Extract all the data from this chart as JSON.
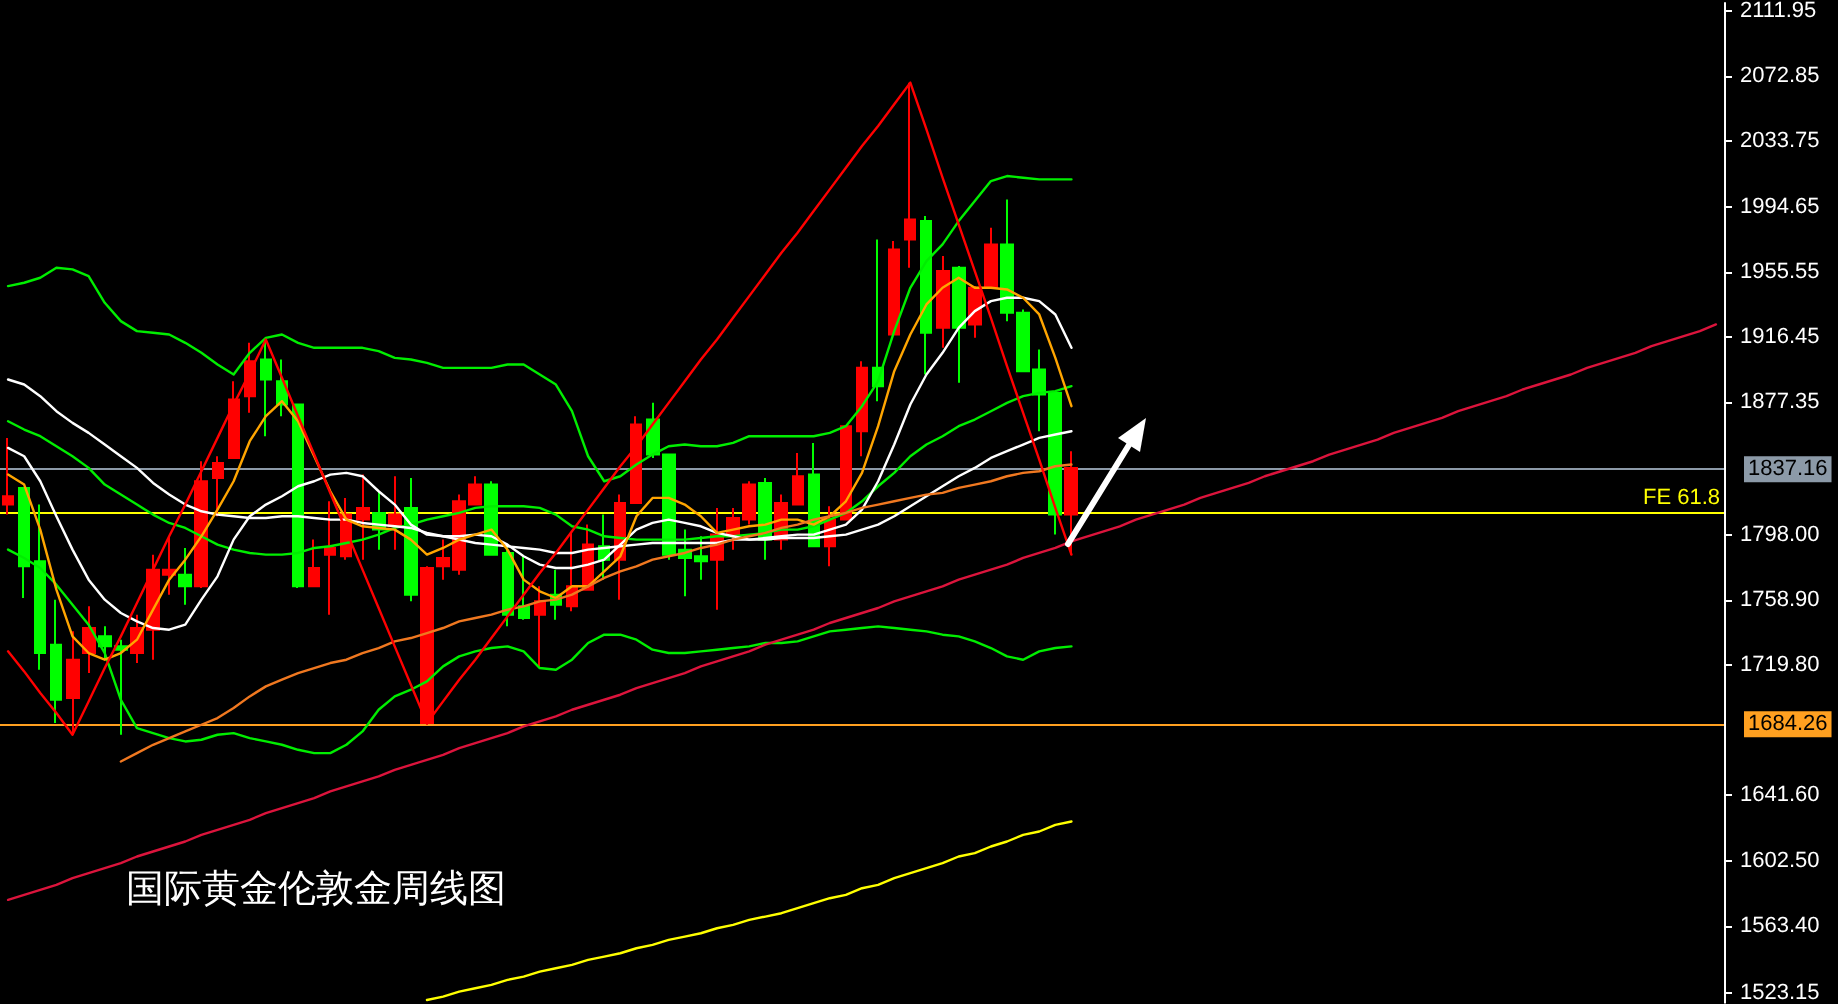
{
  "chart_data": {
    "type": "candlestick",
    "title": "国际黄金伦敦金周线图",
    "categories": [
      null,
      null,
      null,
      null,
      null,
      null,
      null,
      null,
      null,
      null,
      null,
      null,
      null,
      null,
      null,
      null,
      null,
      null,
      null,
      null,
      null,
      null,
      null,
      null,
      null,
      null,
      null,
      null,
      null,
      null,
      null,
      null,
      null,
      null,
      null,
      null,
      null,
      null,
      null,
      null,
      null,
      null,
      null,
      null,
      null,
      null,
      null,
      null,
      null,
      null,
      null,
      null,
      null,
      null,
      null,
      null,
      null,
      null,
      null,
      null,
      null,
      null,
      null,
      null,
      null,
      null,
      null,
      null,
      null,
      null,
      null,
      null,
      null,
      null,
      null,
      null,
      null,
      null,
      null,
      null,
      null,
      null,
      null,
      null,
      null,
      null,
      null,
      null,
      null,
      null,
      null,
      null,
      null,
      null,
      null,
      null,
      null,
      null,
      null,
      null,
      null,
      null,
      null,
      null,
      null,
      null,
      null
    ],
    "ohlc": [
      [
        1816,
        1856,
        1810,
        1821
      ],
      [
        1826,
        1826,
        1760,
        1779
      ],
      [
        1782,
        1816,
        1717,
        1727
      ],
      [
        1732,
        1759,
        1685,
        1699
      ],
      [
        1700,
        1740,
        1678,
        1723
      ],
      [
        1727,
        1755,
        1715,
        1742
      ],
      [
        1737,
        1743,
        1723,
        1731
      ],
      [
        1731,
        1735,
        1678,
        1729
      ],
      [
        1727,
        1750,
        1721,
        1742
      ],
      [
        1741,
        1786,
        1723,
        1777
      ],
      [
        1774,
        1797,
        1762,
        1777
      ],
      [
        1774,
        1790,
        1756,
        1767
      ],
      [
        1767,
        1842,
        1766,
        1830
      ],
      [
        1832,
        1845,
        1809,
        1841
      ],
      [
        1844,
        1890,
        1844,
        1879
      ],
      [
        1881,
        1913,
        1871,
        1902
      ],
      [
        1903,
        1915,
        1857,
        1891
      ],
      [
        1890,
        1903,
        1869,
        1876
      ],
      [
        1876,
        1876,
        1766,
        1767
      ],
      [
        1767,
        1795,
        1767,
        1778
      ],
      [
        1786,
        1818,
        1750,
        1790
      ],
      [
        1785,
        1820,
        1783,
        1810
      ],
      [
        1807,
        1834,
        1783,
        1814
      ],
      [
        1811,
        1824,
        1789,
        1801
      ],
      [
        1803,
        1833,
        1789,
        1810
      ],
      [
        1814,
        1832,
        1758,
        1762
      ],
      [
        1685,
        1779,
        1684,
        1778
      ],
      [
        1779,
        1795,
        1771,
        1784
      ],
      [
        1777,
        1822,
        1774,
        1818
      ],
      [
        1816,
        1833,
        1816,
        1828
      ],
      [
        1828,
        1830,
        1786,
        1786
      ],
      [
        1787,
        1791,
        1743,
        1750
      ],
      [
        1755,
        1785,
        1747,
        1748
      ],
      [
        1750,
        1767,
        1719,
        1758
      ],
      [
        1762,
        1777,
        1747,
        1756
      ],
      [
        1755,
        1799,
        1752,
        1767
      ],
      [
        1765,
        1804,
        1765,
        1792
      ],
      [
        1791,
        1810,
        1771,
        1783
      ],
      [
        1783,
        1822,
        1759,
        1817
      ],
      [
        1817,
        1869,
        1817,
        1864
      ],
      [
        1867,
        1877,
        1844,
        1846
      ],
      [
        1846,
        1846,
        1783,
        1786
      ],
      [
        1789,
        1801,
        1761,
        1784
      ],
      [
        1785,
        1797,
        1771,
        1782
      ],
      [
        1783,
        1814,
        1753,
        1798
      ],
      [
        1797,
        1814,
        1789,
        1808
      ],
      [
        1807,
        1830,
        1804,
        1828
      ],
      [
        1829,
        1832,
        1783,
        1795
      ],
      [
        1795,
        1822,
        1789,
        1817
      ],
      [
        1816,
        1847,
        1816,
        1833
      ],
      [
        1834,
        1853,
        1791,
        1791
      ],
      [
        1791,
        1815,
        1779,
        1807
      ],
      [
        1807,
        1863,
        1807,
        1863
      ],
      [
        1860,
        1902,
        1845,
        1898
      ],
      [
        1898,
        1975,
        1878,
        1887
      ],
      [
        1918,
        1974,
        1918,
        1969
      ],
      [
        1975,
        2069,
        1958,
        1987
      ],
      [
        1986,
        1989,
        1894,
        1919
      ],
      [
        1922,
        1965,
        1910,
        1956
      ],
      [
        1958,
        1959,
        1889,
        1922
      ],
      [
        1924,
        1947,
        1916,
        1946
      ],
      [
        1946,
        1982,
        1946,
        1972
      ],
      [
        1972,
        1999,
        1926,
        1931
      ],
      [
        1931,
        1933,
        1896,
        1896
      ],
      [
        1897,
        1909,
        1860,
        1882
      ],
      [
        1883,
        1883,
        1798,
        1810
      ],
      [
        1810,
        1848,
        1786,
        1838
      ],
      null,
      null,
      null,
      null,
      null,
      null,
      null,
      null,
      null,
      null,
      null,
      null,
      null,
      null,
      null,
      null,
      null,
      null,
      null,
      null,
      null,
      null,
      null,
      null,
      null,
      null,
      null,
      null,
      null,
      null,
      null,
      null,
      null,
      null,
      null,
      null,
      null,
      null,
      null,
      null
    ],
    "series": [
      {
        "type": "line",
        "color": "#00ee00",
        "values": [
          1947,
          1949,
          1952,
          1958,
          1957,
          1953,
          1937,
          1926,
          1920,
          1919,
          1918,
          1913,
          1907,
          1900,
          1894,
          1907,
          1916,
          1918,
          1913,
          1910,
          1910,
          1910,
          1910,
          1908,
          1904,
          1903,
          1901,
          1898,
          1898,
          1898,
          1898,
          1900,
          1900,
          1894,
          1888,
          1872,
          1845,
          1830,
          1833,
          1840,
          1846,
          1851,
          1852,
          1851,
          1851,
          1853,
          1857,
          1857,
          1857,
          1857,
          1857,
          1859,
          1863,
          1875,
          1890,
          1920,
          1946,
          1962,
          1972,
          1986,
          1998,
          2010,
          2013,
          2012,
          2011,
          2011,
          2011,
          null,
          null,
          null,
          null,
          null,
          null,
          null,
          null,
          null,
          null,
          null,
          null,
          null,
          null,
          null,
          null,
          null,
          null,
          null,
          null,
          null,
          null,
          null,
          null,
          null,
          null,
          null,
          null,
          null,
          null,
          null,
          null,
          null,
          null,
          null,
          null,
          null,
          null,
          null,
          null
        ]
      },
      {
        "type": "line",
        "color": "#00ee00",
        "values": [
          1866,
          1861,
          1857,
          1851,
          1845,
          1838,
          1828,
          1822,
          1816,
          1810,
          1805,
          1802,
          1797,
          1792,
          1789,
          1787,
          1786,
          1786,
          1787,
          1790,
          1791,
          1793,
          1795,
          1798,
          1802,
          1804,
          1807,
          1809,
          1811,
          1814,
          1815,
          1815,
          1815,
          1814,
          1810,
          1803,
          1801,
          1797,
          1796,
          1795,
          1795,
          1795,
          1795,
          1796,
          1797,
          1797,
          1798,
          1799,
          1801,
          1801,
          1803,
          1807,
          1811,
          1818,
          1827,
          1835,
          1845,
          1852,
          1857,
          1863,
          1867,
          1872,
          1877,
          1881,
          1883,
          1884,
          1887,
          null,
          null,
          null,
          null,
          null,
          null,
          null,
          null,
          null,
          null,
          null,
          null,
          null,
          null,
          null,
          null,
          null,
          null,
          null,
          null,
          null,
          null,
          null,
          null,
          null,
          null,
          null,
          null,
          null,
          null,
          null,
          null,
          null,
          null,
          null,
          null,
          null,
          null,
          null,
          null
        ]
      },
      {
        "type": "line",
        "color": "#00ee00",
        "values": [
          1789,
          1784,
          1778,
          1768,
          1756,
          1744,
          1727,
          1699,
          1682,
          1679,
          1676,
          1674,
          1675,
          1678,
          1679,
          1676,
          1674,
          1672,
          1669,
          1667,
          1667,
          1672,
          1680,
          1693,
          1701,
          1705,
          1710,
          1719,
          1725,
          1728,
          1730,
          1731,
          1728,
          1718,
          1717,
          1723,
          1733,
          1738,
          1738,
          1735,
          1729,
          1727,
          1727,
          1728,
          1729,
          1730,
          1731,
          1733,
          1733,
          1734,
          1737,
          1740,
          1741,
          1742,
          1743,
          1742,
          1741,
          1740,
          1738,
          1737,
          1734,
          1730,
          1725,
          1723,
          1728,
          1730,
          1731,
          null,
          null,
          null,
          null,
          null,
          null,
          null,
          null,
          null,
          null,
          null,
          null,
          null,
          null,
          null,
          null,
          null,
          null,
          null,
          null,
          null,
          null,
          null,
          null,
          null,
          null,
          null,
          null,
          null,
          null,
          null,
          null,
          null,
          null,
          null,
          null,
          null,
          null,
          null,
          null
        ]
      },
      {
        "type": "line",
        "color": "#ffffff",
        "values": [
          1891,
          1888,
          1881,
          1872,
          1865,
          1859,
          1852,
          1845,
          1838,
          1829,
          1822,
          1816,
          1812,
          1810,
          1809,
          1808,
          1808,
          1809,
          1809,
          1808,
          1807,
          1807,
          1805,
          1804,
          1803,
          1802,
          1799,
          1797,
          1795,
          1793,
          1792,
          1791,
          1790,
          1789,
          1787,
          1787,
          1789,
          1790,
          1791,
          1792,
          1793,
          1793,
          1793,
          1793,
          1793,
          1795,
          1795,
          1795,
          1796,
          1796,
          1796,
          1797,
          1798,
          1801,
          1804,
          1809,
          1815,
          1821,
          1827,
          1833,
          1838,
          1844,
          1848,
          1852,
          1856,
          1858,
          1860,
          null,
          null,
          null,
          null,
          null,
          null,
          null,
          null,
          null,
          null,
          null,
          null,
          null,
          null,
          null,
          null,
          null,
          null,
          null,
          null,
          null,
          null,
          null,
          null,
          null,
          null,
          null,
          null,
          null,
          null,
          null,
          null,
          null,
          null,
          null,
          null,
          null,
          null,
          null,
          null
        ]
      },
      {
        "type": "line",
        "color": "#ffffff",
        "values": [
          1850,
          1845,
          1830,
          1809,
          1789,
          1771,
          1759,
          1751,
          1746,
          1742,
          1741,
          1744,
          1759,
          1773,
          1795,
          1809,
          1816,
          1821,
          1827,
          1830,
          1834,
          1835,
          1833,
          1824,
          1816,
          1804,
          1798,
          1797,
          1797,
          1798,
          1797,
          1792,
          1785,
          1780,
          1778,
          1778,
          1780,
          1783,
          1792,
          1801,
          1805,
          1807,
          1805,
          1803,
          1799,
          1797,
          1795,
          1796,
          1797,
          1798,
          1798,
          1801,
          1804,
          1813,
          1830,
          1852,
          1876,
          1894,
          1907,
          1922,
          1932,
          1938,
          1940,
          1940,
          1938,
          1930,
          1910,
          null,
          null,
          null,
          null,
          null,
          null,
          null,
          null,
          null,
          null,
          null,
          null,
          null,
          null,
          null,
          null,
          null,
          null,
          null,
          null,
          null,
          null,
          null,
          null,
          null,
          null,
          null,
          null,
          null,
          null,
          null,
          null,
          null,
          null,
          null,
          null,
          null,
          null,
          null,
          null
        ]
      },
      {
        "type": "line",
        "color": "#ffa500",
        "values": [
          1834,
          1828,
          1801,
          1765,
          1737,
          1727,
          1723,
          1727,
          1735,
          1753,
          1771,
          1783,
          1797,
          1813,
          1830,
          1854,
          1869,
          1878,
          1866,
          1845,
          1824,
          1807,
          1803,
          1802,
          1801,
          1795,
          1786,
          1790,
          1795,
          1798,
          1801,
          1789,
          1771,
          1764,
          1760,
          1767,
          1767,
          1776,
          1785,
          1809,
          1820,
          1820,
          1816,
          1809,
          1799,
          1801,
          1803,
          1804,
          1807,
          1807,
          1804,
          1809,
          1818,
          1835,
          1863,
          1896,
          1918,
          1936,
          1946,
          1952,
          1946,
          1946,
          1945,
          1940,
          1930,
          1904,
          1875,
          null,
          null,
          null,
          null,
          null,
          null,
          null,
          null,
          null,
          null,
          null,
          null,
          null,
          null,
          null,
          null,
          null,
          null,
          null,
          null,
          null,
          null,
          null,
          null,
          null,
          null,
          null,
          null,
          null,
          null,
          null,
          null,
          null,
          null,
          null,
          null,
          null,
          null,
          null,
          null
        ]
      },
      {
        "type": "line",
        "color": "#f07820",
        "values": [
          null,
          null,
          null,
          null,
          null,
          null,
          null,
          1662,
          1667,
          1672,
          1676,
          1680,
          1684,
          1688,
          1694,
          1701,
          1707,
          1711,
          1715,
          1718,
          1721,
          1723,
          1727,
          1730,
          1734,
          1736,
          1739,
          1742,
          1746,
          1748,
          1750,
          1753,
          1755,
          1758,
          1759,
          1762,
          1767,
          1772,
          1776,
          1779,
          1783,
          1785,
          1787,
          1790,
          1792,
          1795,
          1797,
          1799,
          1802,
          1804,
          1807,
          1809,
          1811,
          1814,
          1816,
          1818,
          1820,
          1822,
          1823,
          1826,
          1828,
          1830,
          1833,
          1835,
          1836,
          1839,
          1840,
          null,
          null,
          null,
          null,
          null,
          null,
          null,
          null,
          null,
          null,
          null,
          null,
          null,
          null,
          null,
          null,
          null,
          null,
          null,
          null,
          null,
          null,
          null,
          null,
          null,
          null,
          null,
          null,
          null,
          null,
          null,
          null,
          null,
          null,
          null,
          null,
          null,
          null,
          null,
          null
        ]
      },
      {
        "type": "line",
        "color": "#ffff00",
        "values": [
          null,
          null,
          null,
          null,
          null,
          null,
          null,
          null,
          null,
          null,
          null,
          null,
          null,
          null,
          null,
          null,
          null,
          null,
          null,
          null,
          null,
          null,
          null,
          null,
          null,
          null,
          1519,
          1521,
          1524,
          1526,
          1528,
          1531,
          1533,
          1536,
          1538,
          1540,
          1543,
          1545,
          1547,
          1550,
          1552,
          1555,
          1557,
          1559,
          1562,
          1564,
          1567,
          1569,
          1571,
          1574,
          1577,
          1580,
          1582,
          1586,
          1588,
          1592,
          1595,
          1598,
          1601,
          1605,
          1607,
          1611,
          1614,
          1618,
          1620,
          1624,
          1626,
          null,
          null,
          null,
          null,
          null,
          null,
          null,
          null,
          null,
          null,
          null,
          null,
          null,
          null,
          null,
          null,
          null,
          null,
          null,
          null,
          null,
          null,
          null,
          null,
          null,
          null,
          null,
          null,
          null,
          null,
          null,
          null,
          null,
          null,
          null,
          null,
          null,
          null,
          null,
          null
        ]
      },
      {
        "type": "line",
        "color": "#ff0000",
        "values": [
          1728,
          1716,
          1703,
          1691,
          1678,
          1698,
          1718,
          1737,
          1757,
          1777,
          1797,
          1816,
          1836,
          1856,
          1876,
          1895,
          1915,
          1892,
          1869,
          1846,
          1823,
          1800,
          1777,
          1754,
          1731,
          1708,
          1685,
          1698,
          1711,
          1723,
          1736,
          1749,
          1762,
          1775,
          1787,
          1800,
          1813,
          1826,
          1839,
          1851,
          1864,
          1877,
          1890,
          1903,
          1915,
          1928,
          1941,
          1954,
          1967,
          1979,
          1992,
          2005,
          2018,
          2031,
          2043,
          2056,
          2069,
          2041,
          2012,
          1984,
          1956,
          1928,
          1899,
          1871,
          1843,
          1814,
          1786,
          null,
          null,
          null,
          null,
          null,
          null,
          null,
          null,
          null,
          null,
          null,
          null,
          null,
          null,
          null,
          null,
          null,
          null,
          null,
          null,
          null,
          null,
          null,
          null,
          null,
          null,
          null,
          null,
          null,
          null,
          null,
          null,
          null,
          null,
          null,
          null,
          null,
          null,
          null,
          null
        ]
      },
      {
        "type": "line",
        "color": "#dc143c",
        "values": [
          1579,
          1582,
          1585,
          1588,
          1592,
          1595,
          1598,
          1601,
          1605,
          1608,
          1611,
          1614,
          1618,
          1621,
          1624,
          1627,
          1631,
          1634,
          1637,
          1640,
          1644,
          1647,
          1650,
          1653,
          1657,
          1660,
          1663,
          1666,
          1670,
          1673,
          1676,
          1679,
          1683,
          1686,
          1689,
          1693,
          1696,
          1699,
          1702,
          1706,
          1709,
          1712,
          1715,
          1719,
          1722,
          1725,
          1728,
          1732,
          1735,
          1738,
          1741,
          1745,
          1748,
          1751,
          1754,
          1758,
          1761,
          1764,
          1767,
          1771,
          1774,
          1777,
          1780,
          1784,
          1787,
          1790,
          1794,
          1797,
          1800,
          1803,
          1807,
          1810,
          1813,
          1816,
          1820,
          1823,
          1826,
          1829,
          1833,
          1836,
          1839,
          1842,
          1846,
          1849,
          1852,
          1855,
          1859,
          1862,
          1865,
          1868,
          1872,
          1875,
          1878,
          1881,
          1885,
          1888,
          1891,
          1894,
          1898,
          1901,
          1904,
          1907,
          1911,
          1914,
          1917,
          1920,
          1924
        ]
      }
    ],
    "ylim": [
      1517.3,
      2116.7
    ],
    "yticks": [
      2111.95,
      2072.85,
      2033.75,
      1994.65,
      1955.55,
      1916.45,
      1877.35,
      {
        "value": 1798,
        "label": "1798.00"
      },
      {
        "value": 1758.9,
        "label": "1758.90"
      },
      {
        "value": 1719.8,
        "label": "1719.80"
      },
      {
        "value": 1641.6,
        "label": "1641.60"
      },
      {
        "value": 1602.5,
        "label": "1602.50"
      },
      {
        "value": 1563.4,
        "label": "1563.40"
      },
      1523.15
    ],
    "ref_lines": [
      {
        "axis": "y",
        "value": 1837.16,
        "label": "1837.16",
        "color": "#8c9aa8"
      },
      {
        "axis": "y",
        "value": 1811,
        "label": "FE 61.8",
        "color": "#ffff00"
      },
      {
        "axis": "y",
        "value": 1684.26,
        "label": "1684.26",
        "color": "#ffa020"
      }
    ],
    "tick_labels": "y"
  }
}
